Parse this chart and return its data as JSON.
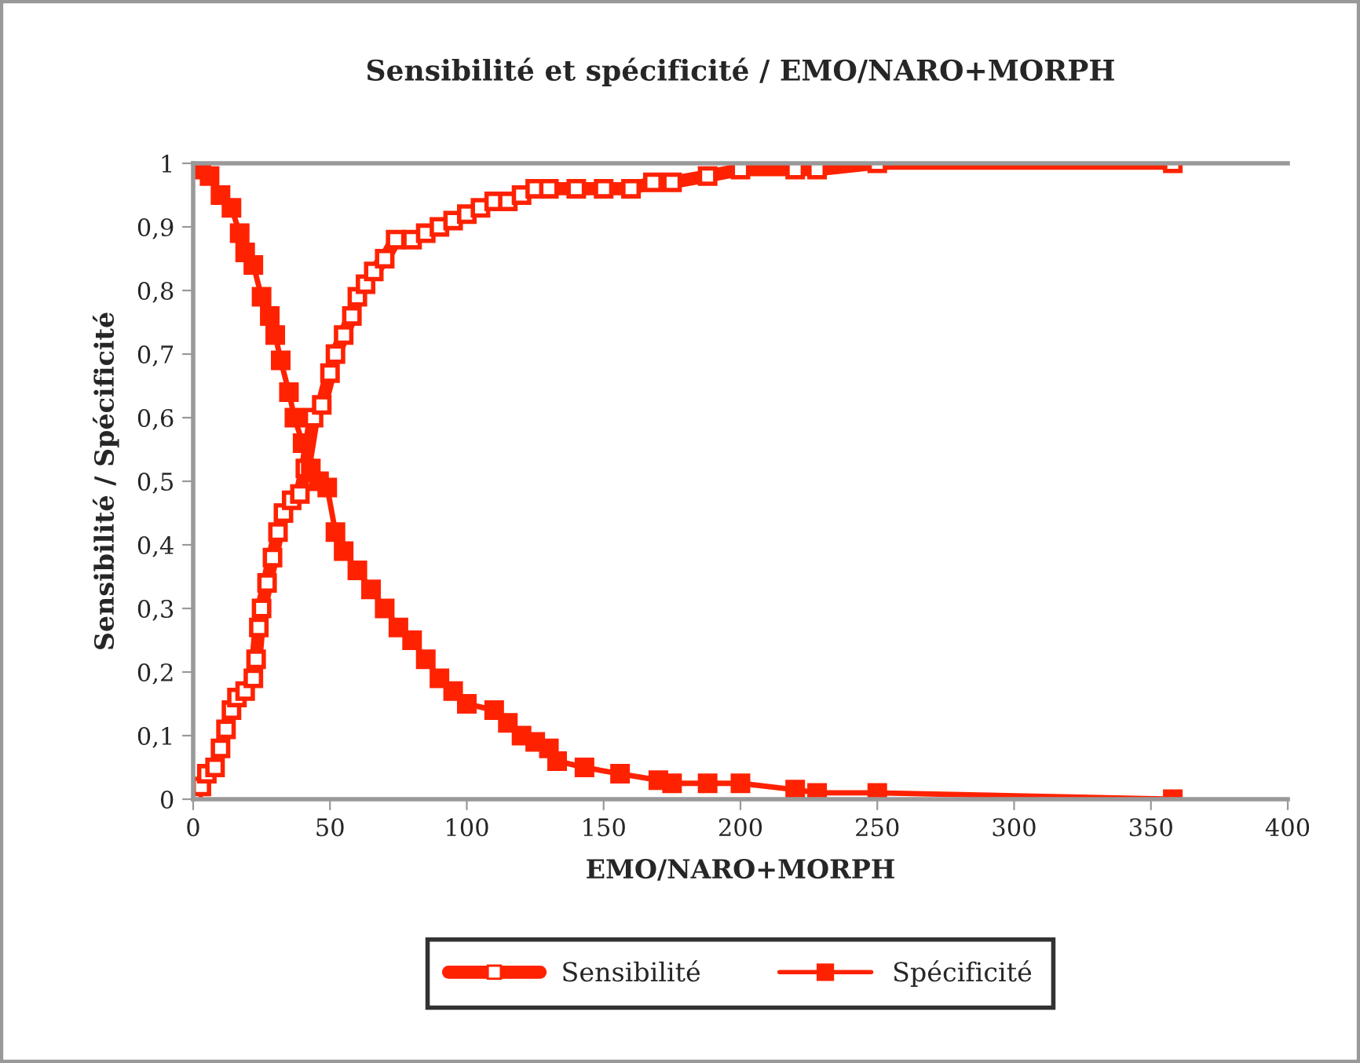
{
  "chart_data": {
    "type": "line",
    "title": "Sensibilité et spécificité / EMO/NARO+MORPH",
    "xlabel": "EMO/NARO+MORPH",
    "ylabel": "Sensibilité / Spécificité",
    "xlim": [
      0,
      400
    ],
    "xticks": [
      0,
      50,
      100,
      150,
      200,
      250,
      300,
      350,
      400
    ],
    "ylim": [
      0,
      1
    ],
    "yticks": [
      0,
      {
        "value": 0.1,
        "label": "0,1"
      },
      {
        "value": 0.2,
        "label": "0,2"
      },
      {
        "value": 0.3,
        "label": "0,3"
      },
      {
        "value": 0.4,
        "label": "0,4"
      },
      {
        "value": 0.5,
        "label": "0,5"
      },
      {
        "value": 0.6,
        "label": "0,6"
      },
      {
        "value": 0.7,
        "label": "0,7"
      },
      {
        "value": 0.8,
        "label": "0,8"
      },
      {
        "value": 0.9,
        "label": "0,9"
      },
      1
    ],
    "grid": false,
    "legend": "bottom",
    "marker": "square",
    "line_style": "solid",
    "series": [
      {
        "name": "Sensibilité",
        "color": "#ff2200",
        "x": [
          0,
          3,
          5,
          8,
          10,
          12,
          14,
          16,
          19,
          22,
          23,
          24,
          25,
          27,
          29,
          31,
          33,
          36,
          39,
          41,
          44,
          47,
          50,
          52,
          55,
          58,
          60,
          63,
          66,
          70,
          74,
          80,
          85,
          90,
          95,
          100,
          105,
          110,
          115,
          120,
          125,
          130,
          140,
          150,
          160,
          168,
          175,
          188,
          200,
          220,
          228,
          250,
          358
        ],
        "values": [
          0.01,
          0.02,
          0.04,
          0.05,
          0.08,
          0.11,
          0.14,
          0.16,
          0.17,
          0.19,
          0.22,
          0.27,
          0.3,
          0.34,
          0.38,
          0.42,
          0.45,
          0.47,
          0.48,
          0.52,
          0.6,
          0.62,
          0.67,
          0.7,
          0.73,
          0.76,
          0.79,
          0.81,
          0.83,
          0.85,
          0.88,
          0.88,
          0.89,
          0.9,
          0.91,
          0.92,
          0.93,
          0.94,
          0.94,
          0.95,
          0.96,
          0.96,
          0.96,
          0.96,
          0.96,
          0.97,
          0.97,
          0.98,
          0.99,
          0.99,
          0.99,
          1,
          1
        ]
      },
      {
        "name": "Spécificité",
        "color": "#ff2200",
        "x": [
          0,
          3,
          6,
          10,
          14,
          17,
          19,
          22,
          25,
          28,
          30,
          32,
          35,
          37,
          40,
          43,
          46,
          49,
          52,
          55,
          60,
          65,
          70,
          75,
          80,
          85,
          90,
          95,
          100,
          110,
          115,
          120,
          125,
          130,
          133,
          143,
          156,
          170,
          175,
          188,
          200,
          220,
          228,
          250,
          358
        ],
        "values": [
          1,
          0.99,
          0.98,
          0.95,
          0.93,
          0.89,
          0.86,
          0.84,
          0.79,
          0.76,
          0.73,
          0.69,
          0.64,
          0.6,
          0.56,
          0.52,
          0.5,
          0.49,
          0.42,
          0.39,
          0.36,
          0.33,
          0.3,
          0.27,
          0.25,
          0.22,
          0.19,
          0.17,
          0.15,
          0.14,
          0.12,
          0.1,
          0.09,
          0.08,
          0.06,
          0.05,
          0.04,
          0.03,
          0.025,
          0.025,
          0.025,
          0.015,
          0.01,
          0.01,
          0
        ]
      }
    ]
  }
}
